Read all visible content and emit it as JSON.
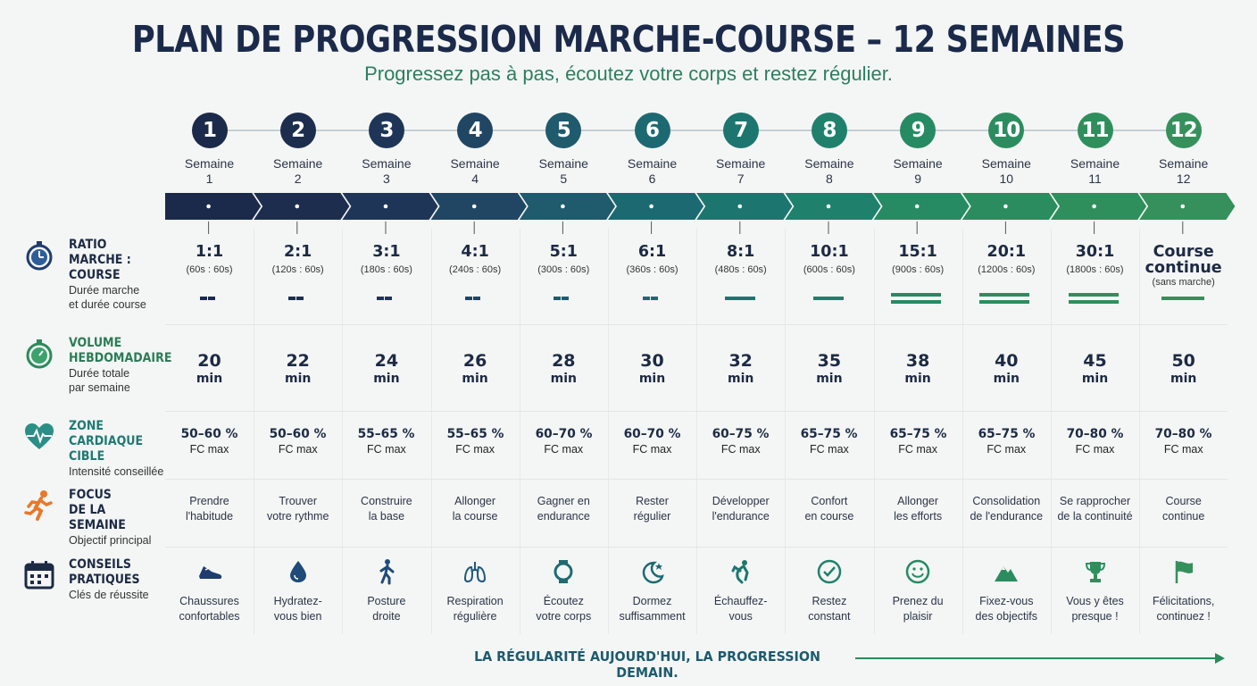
{
  "header": {
    "title": "PLAN DE PROGRESSION MARCHE-COURSE – 12 SEMAINES",
    "subtitle": "Progressez pas à pas, écoutez votre corps et restez régulier."
  },
  "weeks": [
    {
      "num": "1",
      "label": "Semaine",
      "label2": "1",
      "color": "#1b2a4a"
    },
    {
      "num": "2",
      "label": "Semaine",
      "label2": "2",
      "color": "#1d2d4e"
    },
    {
      "num": "3",
      "label": "Semaine",
      "label2": "3",
      "color": "#1f3557"
    },
    {
      "num": "4",
      "label": "Semaine",
      "label2": "4",
      "color": "#204663"
    },
    {
      "num": "5",
      "label": "Semaine",
      "label2": "5",
      "color": "#1f5a6d"
    },
    {
      "num": "6",
      "label": "Semaine",
      "label2": "6",
      "color": "#1d6972"
    },
    {
      "num": "7",
      "label": "Semaine",
      "label2": "7",
      "color": "#1c766f"
    },
    {
      "num": "8",
      "label": "Semaine",
      "label2": "8",
      "color": "#1f816c"
    },
    {
      "num": "9",
      "label": "Semaine",
      "label2": "9",
      "color": "#268a63"
    },
    {
      "num": "10",
      "label": "Semaine",
      "label2": "10",
      "color": "#2b8d5f"
    },
    {
      "num": "11",
      "label": "Semaine",
      "label2": "11",
      "color": "#2f8f5c"
    },
    {
      "num": "12",
      "label": "Semaine",
      "label2": "12",
      "color": "#35905b"
    }
  ],
  "rows": {
    "ratio": {
      "title_l1": "RATIO",
      "title_l2": "MARCHE :",
      "title_l3": "COURSE",
      "sub_l1": "Durée marche",
      "sub_l2": "et durée course",
      "color": "#1d2a44",
      "icon": "stopwatch-icon"
    },
    "volume": {
      "title_l1": "VOLUME",
      "title_l2": "HEBDOMADAIRE",
      "sub_l1": "Durée totale",
      "sub_l2": "par semaine",
      "color": "#2a7c56",
      "icon": "timer-icon"
    },
    "zone": {
      "title_l1": "ZONE CARDIAQUE",
      "title_l2": "CIBLE",
      "sub_l1": "Intensité conseillée",
      "color": "#1f7a74",
      "icon": "heart-pulse-icon"
    },
    "focus": {
      "title_l1": "FOCUS",
      "title_l2": "DE LA SEMAINE",
      "sub_l1": "Objectif principal",
      "color": "#1d2a44",
      "icon": "runner-icon",
      "icon_color": "#e8782a"
    },
    "tips": {
      "title_l1": "CONSEILS",
      "title_l2": "PRATIQUES",
      "sub_l1": "Clés de réussite",
      "color": "#1d2a44",
      "icon": "calendar-icon"
    }
  },
  "ratios": [
    {
      "main": "1:1",
      "sub": "(60s : 60s)"
    },
    {
      "main": "2:1",
      "sub": "(120s : 60s)"
    },
    {
      "main": "3:1",
      "sub": "(180s : 60s)"
    },
    {
      "main": "4:1",
      "sub": "(240s : 60s)"
    },
    {
      "main": "5:1",
      "sub": "(300s : 60s)"
    },
    {
      "main": "6:1",
      "sub": "(360s : 60s)"
    },
    {
      "main": "8:1",
      "sub": "(480s : 60s)"
    },
    {
      "main": "10:1",
      "sub": "(600s : 60s)"
    },
    {
      "main": "15:1",
      "sub": "(900s : 60s)"
    },
    {
      "main": "20:1",
      "sub": "(1200s : 60s)"
    },
    {
      "main": "30:1",
      "sub": "(1800s : 60s)"
    },
    {
      "main": "Course",
      "main2": "continue",
      "sub": "(sans marche)"
    }
  ],
  "volumes": [
    {
      "n": "20",
      "u": "min"
    },
    {
      "n": "22",
      "u": "min"
    },
    {
      "n": "24",
      "u": "min"
    },
    {
      "n": "26",
      "u": "min"
    },
    {
      "n": "28",
      "u": "min"
    },
    {
      "n": "30",
      "u": "min"
    },
    {
      "n": "32",
      "u": "min"
    },
    {
      "n": "35",
      "u": "min"
    },
    {
      "n": "38",
      "u": "min"
    },
    {
      "n": "40",
      "u": "min"
    },
    {
      "n": "45",
      "u": "min"
    },
    {
      "n": "50",
      "u": "min"
    }
  ],
  "zones": [
    {
      "v": "50–60 %",
      "u": "FC max"
    },
    {
      "v": "50–60 %",
      "u": "FC max"
    },
    {
      "v": "55–65 %",
      "u": "FC max"
    },
    {
      "v": "55–65 %",
      "u": "FC max"
    },
    {
      "v": "60–70 %",
      "u": "FC max"
    },
    {
      "v": "60–70 %",
      "u": "FC max"
    },
    {
      "v": "60–75 %",
      "u": "FC max"
    },
    {
      "v": "65–75 %",
      "u": "FC max"
    },
    {
      "v": "65–75 %",
      "u": "FC max"
    },
    {
      "v": "65–75 %",
      "u": "FC max"
    },
    {
      "v": "70–80 %",
      "u": "FC max"
    },
    {
      "v": "70–80 %",
      "u": "FC max"
    }
  ],
  "focus": [
    {
      "l1": "Prendre",
      "l2": "l'habitude"
    },
    {
      "l1": "Trouver",
      "l2": "votre rythme"
    },
    {
      "l1": "Construire",
      "l2": "la base"
    },
    {
      "l1": "Allonger",
      "l2": "la course"
    },
    {
      "l1": "Gagner en",
      "l2": "endurance"
    },
    {
      "l1": "Rester",
      "l2": "régulier"
    },
    {
      "l1": "Développer",
      "l2": "l'endurance"
    },
    {
      "l1": "Confort",
      "l2": "en course"
    },
    {
      "l1": "Allonger",
      "l2": "les efforts"
    },
    {
      "l1": "Consolidation",
      "l2": "de l'endurance"
    },
    {
      "l1": "Se rapprocher",
      "l2": "de la continuité"
    },
    {
      "l1": "Course",
      "l2": "continue"
    }
  ],
  "tips": [
    {
      "icon": "shoe-icon",
      "l1": "Chaussures",
      "l2": "confortables"
    },
    {
      "icon": "water-drop-icon",
      "l1": "Hydratez-",
      "l2": "vous bien"
    },
    {
      "icon": "walking-person-icon",
      "l1": "Posture",
      "l2": "droite"
    },
    {
      "icon": "lungs-icon",
      "l1": "Respiration",
      "l2": "régulière"
    },
    {
      "icon": "smartwatch-icon",
      "l1": "Écoutez",
      "l2": "votre corps"
    },
    {
      "icon": "moon-star-icon",
      "l1": "Dormez",
      "l2": "suffisamment"
    },
    {
      "icon": "stretching-icon",
      "l1": "Échauffez-",
      "l2": "vous"
    },
    {
      "icon": "check-circle-icon",
      "l1": "Restez",
      "l2": "constant"
    },
    {
      "icon": "smiley-icon",
      "l1": "Prenez du",
      "l2": "plaisir"
    },
    {
      "icon": "mountain-icon",
      "l1": "Fixez-vous",
      "l2": "des objectifs"
    },
    {
      "icon": "trophy-icon",
      "l1": "Vous y êtes",
      "l2": "presque !"
    },
    {
      "icon": "flag-icon",
      "l1": "Félicitations,",
      "l2": "continuez !"
    }
  ],
  "footer": {
    "text": "LA RÉGULARITÉ AUJOURD'HUI, LA PROGRESSION DEMAIN."
  }
}
